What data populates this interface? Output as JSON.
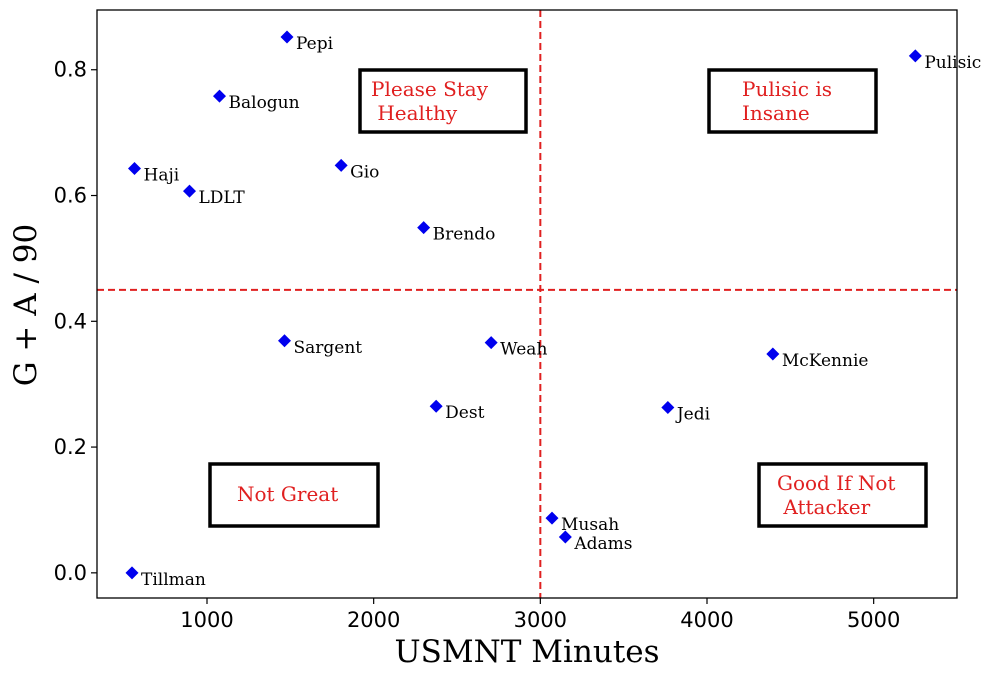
{
  "chart_data": {
    "type": "scatter",
    "title": "",
    "xlabel": "USMNT Minutes",
    "ylabel": "G + A / 90",
    "xlim": [
      340,
      5500
    ],
    "ylim": [
      -0.04,
      0.895
    ],
    "x_ticks": [
      1000,
      2000,
      3000,
      4000,
      5000
    ],
    "y_ticks": [
      0.0,
      0.2,
      0.4,
      0.6,
      0.8
    ],
    "x_tick_labels": [
      "1000",
      "2000",
      "3000",
      "4000",
      "5000"
    ],
    "y_tick_labels": [
      "0.0",
      "0.2",
      "0.4",
      "0.6",
      "0.8"
    ],
    "grid": false,
    "marker": "diamond",
    "marker_color": "#0000ee",
    "divider_color": "#e02020",
    "annotation_color": "#e02020",
    "vline_x": 3000,
    "hline_y": 0.45,
    "points": [
      {
        "name": "Pepi",
        "x": 1480,
        "y": 0.852
      },
      {
        "name": "Pulisic",
        "x": 5250,
        "y": 0.822
      },
      {
        "name": "Balogun",
        "x": 1075,
        "y": 0.758
      },
      {
        "name": "Gio",
        "x": 1805,
        "y": 0.648
      },
      {
        "name": "Haji",
        "x": 565,
        "y": 0.643
      },
      {
        "name": "LDLT",
        "x": 895,
        "y": 0.607
      },
      {
        "name": "Brendo",
        "x": 2300,
        "y": 0.549
      },
      {
        "name": "Sargent",
        "x": 1465,
        "y": 0.369
      },
      {
        "name": "Weah",
        "x": 2705,
        "y": 0.366
      },
      {
        "name": "McKennie",
        "x": 4395,
        "y": 0.348
      },
      {
        "name": "Dest",
        "x": 2375,
        "y": 0.265
      },
      {
        "name": "Jedi",
        "x": 3765,
        "y": 0.263
      },
      {
        "name": "Musah",
        "x": 3070,
        "y": 0.087
      },
      {
        "name": "Adams",
        "x": 3150,
        "y": 0.057
      },
      {
        "name": "Tillman",
        "x": 550,
        "y": 0.0
      }
    ],
    "annotations": [
      {
        "id": "please-stay-healthy",
        "lines": [
          "Please Stay",
          " Healthy"
        ]
      },
      {
        "id": "pulisic-is-insane",
        "lines": [
          "Pulisic is",
          "Insane"
        ]
      },
      {
        "id": "not-great",
        "lines": [
          "Not Great"
        ]
      },
      {
        "id": "good-if-not-attacker",
        "lines": [
          "Good If Not",
          " Attacker"
        ]
      }
    ]
  }
}
